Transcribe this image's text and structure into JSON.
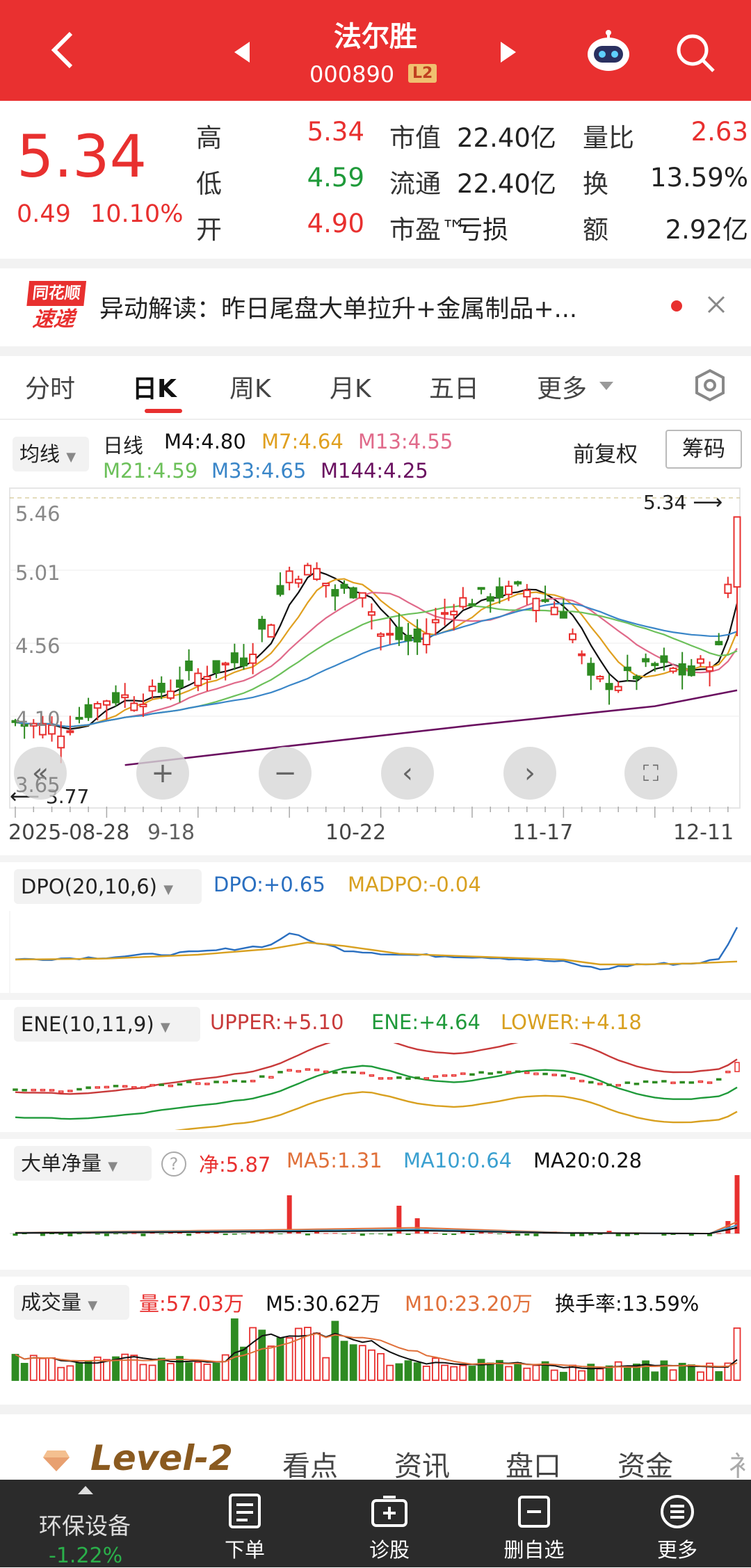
{
  "header": {
    "stock_name": "法尔胜",
    "stock_code": "000890",
    "badge": "L2"
  },
  "quote": {
    "price": "5.34",
    "change": "0.49",
    "change_pct": "10.10%",
    "rows": [
      {
        "l1": "高",
        "v1": "5.34",
        "l2": "市值",
        "v2": "22.40亿",
        "l3": "量比",
        "v3": "2.63"
      },
      {
        "l1": "低",
        "v1": "4.59",
        "l2": "流通",
        "v2": "22.40亿",
        "l3": "换",
        "v3": "13.59%"
      },
      {
        "l1": "开",
        "v1": "4.90",
        "l2": "市盈™",
        "v2": "亏损",
        "l3": "额",
        "v3": "2.92亿"
      }
    ]
  },
  "news": {
    "logo_top": "同花顺",
    "logo_bottom": "速递",
    "text": "异动解读：昨日尾盘大单拉升+金属制品+..."
  },
  "tabs": [
    "分时",
    "日K",
    "周K",
    "月K",
    "五日",
    "更多"
  ],
  "active_tab": "日K",
  "kline": {
    "ma_selector": "均线",
    "period": "日线",
    "ma": [
      {
        "label": "M4:4.80",
        "color": "#111111"
      },
      {
        "label": "M7:4.64",
        "color": "#e0a020"
      },
      {
        "label": "M13:4.55",
        "color": "#e06a8a"
      },
      {
        "label": "M21:4.59",
        "color": "#6cc05a"
      },
      {
        "label": "M33:4.65",
        "color": "#3a86c8"
      },
      {
        "label": "M144:4.25",
        "color": "#6a1060"
      }
    ],
    "adjust": "前复权",
    "chips": "筹码",
    "y_ticks": [
      "5.46",
      "5.01",
      "4.56",
      "4.10",
      "3.65"
    ],
    "high_label": "5.34",
    "low_label": "3.77",
    "dates": [
      "2025-08-28",
      "9-18",
      "10-22",
      "11-17",
      "12-11"
    ]
  },
  "indicators": {
    "dpo": {
      "name": "DPO(20,10,6)",
      "v1": "DPO:+0.65",
      "v2": "MADPO:-0.04"
    },
    "ene": {
      "name": "ENE(10,11,9)",
      "v1": "UPPER:+5.10",
      "v2": "ENE:+4.64",
      "v3": "LOWER:+4.18"
    },
    "bigorder": {
      "name": "大单净量",
      "v1": "净:5.87",
      "v2": "MA5:1.31",
      "v3": "MA10:0.64",
      "v4": "MA20:0.28"
    },
    "volume": {
      "name": "成交量",
      "v1": "量:57.03万",
      "v2": "M5:30.62万",
      "v3": "M10:23.20万",
      "v4": "换手率:13.59%"
    }
  },
  "bottom_tabs": {
    "level2": "Level-2",
    "items": [
      "看点",
      "资讯",
      "盘口",
      "资金"
    ],
    "more": "衤"
  },
  "bottom_nav": {
    "sector": "环保设备",
    "sector_pct": "-1.22%",
    "items": [
      "下单",
      "诊股",
      "删自选",
      "更多"
    ]
  }
}
